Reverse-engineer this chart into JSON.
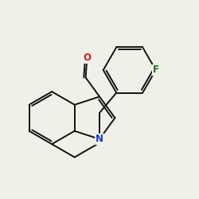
{
  "background_color": "#f0f0e8",
  "atom_colors": {
    "N": "#1a35cc",
    "O": "#cc2010",
    "F": "#2a6a2a"
  },
  "bond_color": "#111111",
  "bond_width": 1.4,
  "font_size_atom": 8.5,
  "figsize": [
    2.5,
    2.5
  ],
  "dpi": 100,
  "bl": 1.0
}
